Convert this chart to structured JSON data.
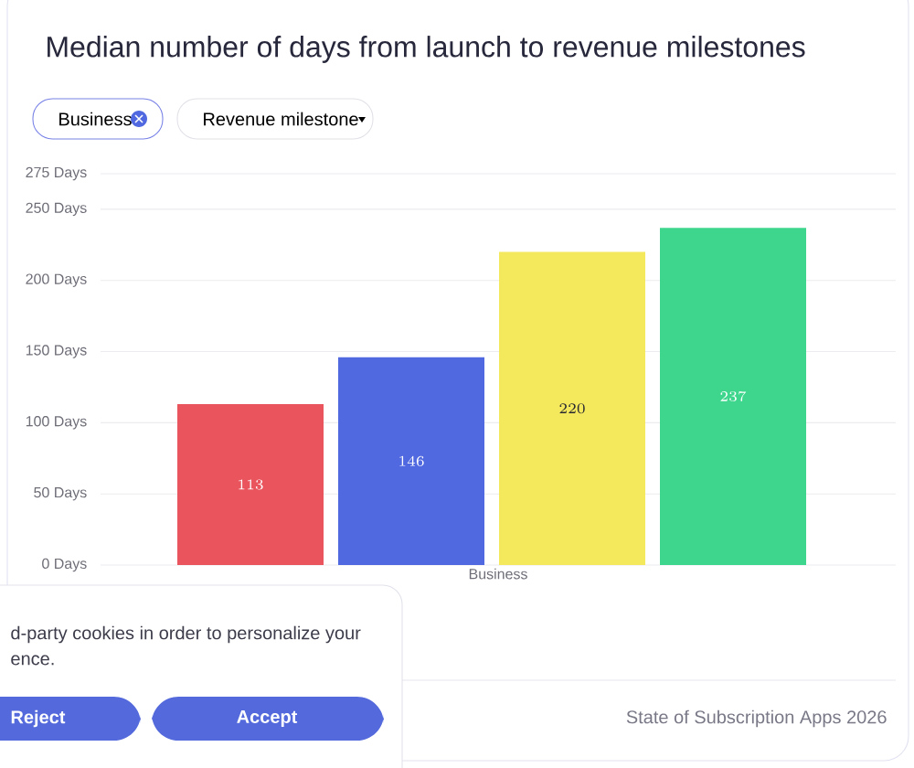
{
  "chart_data": {
    "type": "bar",
    "title": "Median number of days from launch to revenue milestones",
    "xlabel": "Business",
    "categories": [
      null,
      null,
      null,
      null
    ],
    "values": [
      113,
      146,
      220,
      237
    ],
    "colors": [
      "#e9545d",
      "#5068e0",
      "#f4e85c",
      "#3dd68c"
    ],
    "ylim": [
      0,
      275
    ],
    "yticks": [
      {
        "value": 0,
        "label": "0 Days"
      },
      {
        "value": 50,
        "label": "50 Days"
      },
      {
        "value": 100,
        "label": "100 Days"
      },
      {
        "value": 150,
        "label": "150 Days"
      },
      {
        "value": 200,
        "label": "200 Days"
      },
      {
        "value": 250,
        "label": "250 Days"
      },
      {
        "value": 275,
        "label": "275 Days"
      }
    ],
    "grid": "y",
    "data_labels": true,
    "annotations": [
      "Business",
      "Revenue milestone",
      "State of Subscription Apps 2026",
      "d-party cookies in order to personalize your",
      "ence.",
      "Reject",
      "Accept"
    ]
  }
}
